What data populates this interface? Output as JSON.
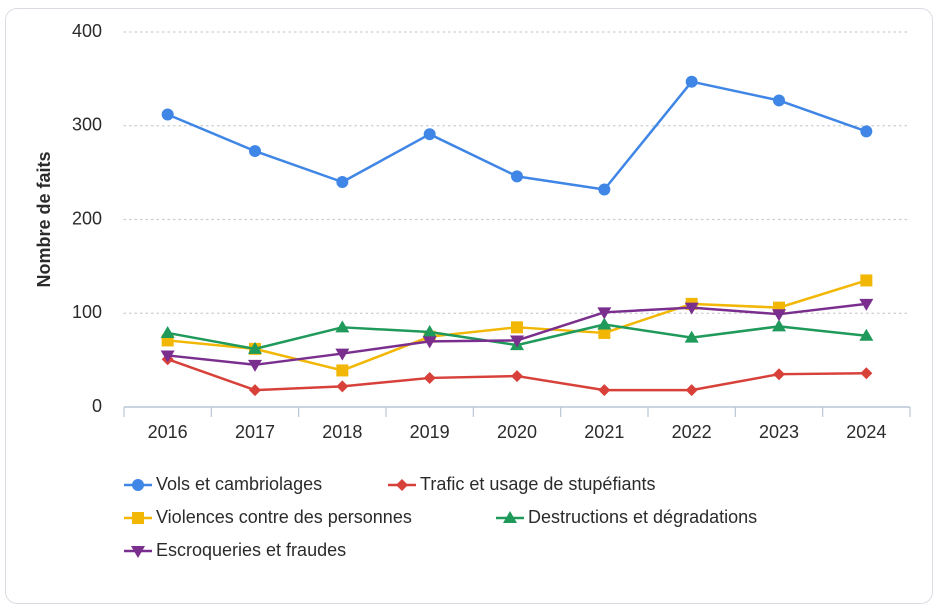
{
  "chart_data": {
    "type": "line",
    "title": "",
    "xlabel": "",
    "ylabel": "Nombre de faits",
    "ylim": [
      0,
      400
    ],
    "yticks": [
      0,
      100,
      200,
      300,
      400
    ],
    "grid": true,
    "legend_position": "bottom",
    "categories": [
      "2016",
      "2017",
      "2018",
      "2019",
      "2020",
      "2021",
      "2022",
      "2023",
      "2024"
    ],
    "series": [
      {
        "name": "Vols et cambriolages",
        "color": "#3f86e6",
        "marker": "circle",
        "values": [
          312,
          273,
          240,
          291,
          246,
          232,
          347,
          327,
          294
        ]
      },
      {
        "name": "Trafic et usage de stupéfiants",
        "color": "#d8413a",
        "marker": "diamond",
        "values": [
          51,
          18,
          22,
          31,
          33,
          18,
          18,
          35,
          36
        ]
      },
      {
        "name": "Violences contre des personnes",
        "color": "#f2b705",
        "marker": "square",
        "values": [
          71,
          62,
          39,
          75,
          85,
          79,
          110,
          106,
          135
        ]
      },
      {
        "name": "Destructions et dégradations",
        "color": "#1f9a5b",
        "marker": "triangle-up",
        "values": [
          79,
          62,
          85,
          80,
          66,
          88,
          74,
          86,
          76
        ]
      },
      {
        "name": "Escroqueries et fraudes",
        "color": "#7a2f8f",
        "marker": "triangle-down",
        "values": [
          55,
          45,
          57,
          70,
          71,
          101,
          106,
          99,
          110
        ]
      }
    ]
  }
}
